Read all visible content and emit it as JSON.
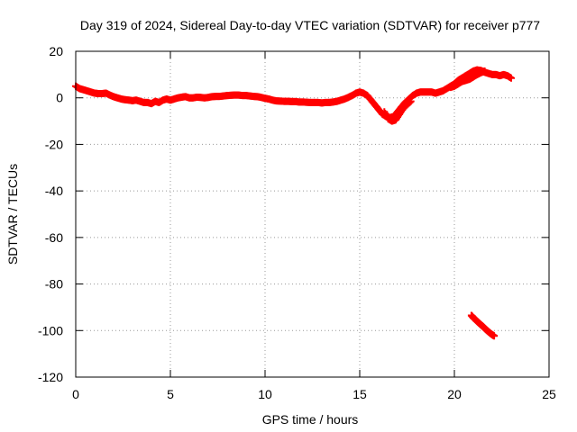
{
  "chart_data": {
    "type": "scatter",
    "title": "Day 319 of 2024, Sidereal Day-to-day VTEC variation (SDTVAR) for receiver p777",
    "xlabel": "GPS time / hours",
    "ylabel": "SDTVAR / TECUs",
    "xlim": [
      0,
      25
    ],
    "ylim": [
      -120,
      20
    ],
    "xticks": [
      0,
      5,
      10,
      15,
      20,
      25
    ],
    "yticks": [
      -120,
      -100,
      -80,
      -60,
      -40,
      -20,
      0,
      20
    ],
    "grid": true,
    "marker": "+",
    "color": "#ff0000",
    "series": [
      {
        "name": "main",
        "points": [
          [
            0.0,
            5.0
          ],
          [
            0.2,
            4.0
          ],
          [
            0.4,
            3.5
          ],
          [
            0.6,
            3.0
          ],
          [
            0.8,
            2.5
          ],
          [
            1.0,
            2.0
          ],
          [
            1.2,
            1.8
          ],
          [
            1.4,
            1.8
          ],
          [
            1.6,
            2.0
          ],
          [
            1.8,
            1.2
          ],
          [
            2.0,
            0.5
          ],
          [
            2.2,
            0.0
          ],
          [
            2.4,
            -0.5
          ],
          [
            2.6,
            -0.8
          ],
          [
            2.8,
            -1.0
          ],
          [
            3.0,
            -1.2
          ],
          [
            3.2,
            -1.0
          ],
          [
            3.4,
            -1.5
          ],
          [
            3.6,
            -2.0
          ],
          [
            3.8,
            -2.0
          ],
          [
            4.0,
            -2.5
          ],
          [
            4.2,
            -1.5
          ],
          [
            4.4,
            -2.0
          ],
          [
            4.6,
            -1.0
          ],
          [
            4.8,
            -0.5
          ],
          [
            5.0,
            -1.0
          ],
          [
            5.2,
            -0.5
          ],
          [
            5.4,
            0.0
          ],
          [
            5.6,
            0.3
          ],
          [
            5.8,
            0.5
          ],
          [
            6.0,
            0.0
          ],
          [
            6.2,
            0.0
          ],
          [
            6.4,
            0.3
          ],
          [
            6.6,
            0.2
          ],
          [
            6.8,
            0.0
          ],
          [
            7.0,
            0.2
          ],
          [
            7.2,
            0.5
          ],
          [
            7.4,
            0.6
          ],
          [
            7.6,
            0.6
          ],
          [
            7.8,
            0.8
          ],
          [
            8.0,
            1.0
          ],
          [
            8.2,
            1.1
          ],
          [
            8.4,
            1.2
          ],
          [
            8.6,
            1.2
          ],
          [
            8.8,
            1.0
          ],
          [
            9.0,
            1.0
          ],
          [
            9.2,
            0.8
          ],
          [
            9.4,
            0.6
          ],
          [
            9.6,
            0.5
          ],
          [
            9.8,
            0.2
          ],
          [
            10.0,
            -0.2
          ],
          [
            10.2,
            -0.5
          ],
          [
            10.4,
            -1.0
          ],
          [
            10.6,
            -1.3
          ],
          [
            10.8,
            -1.4
          ],
          [
            11.0,
            -1.5
          ],
          [
            11.2,
            -1.5
          ],
          [
            11.4,
            -1.6
          ],
          [
            11.6,
            -1.6
          ],
          [
            11.8,
            -1.8
          ],
          [
            12.0,
            -1.8
          ],
          [
            12.2,
            -1.9
          ],
          [
            12.4,
            -2.0
          ],
          [
            12.6,
            -2.0
          ],
          [
            12.8,
            -2.0
          ],
          [
            13.0,
            -2.2
          ],
          [
            13.2,
            -2.0
          ],
          [
            13.4,
            -2.0
          ],
          [
            13.6,
            -1.8
          ],
          [
            13.8,
            -1.5
          ],
          [
            14.0,
            -1.0
          ],
          [
            14.2,
            -0.5
          ],
          [
            14.4,
            0.2
          ],
          [
            14.6,
            1.0
          ],
          [
            14.8,
            2.0
          ],
          [
            15.0,
            2.5
          ],
          [
            15.2,
            2.0
          ],
          [
            15.4,
            1.0
          ],
          [
            15.6,
            -1.0
          ],
          [
            15.8,
            -3.0
          ],
          [
            16.0,
            -5.0
          ],
          [
            16.2,
            -7.0
          ],
          [
            16.4,
            -8.0
          ],
          [
            16.6,
            -8.5
          ],
          [
            16.8,
            -8.0
          ],
          [
            17.0,
            -6.0
          ],
          [
            17.2,
            -4.0
          ],
          [
            17.4,
            -2.0
          ],
          [
            17.6,
            -0.5
          ],
          [
            17.8,
            1.0
          ],
          [
            18.0,
            2.0
          ],
          [
            18.2,
            2.5
          ],
          [
            18.4,
            2.5
          ],
          [
            18.6,
            2.5
          ],
          [
            18.8,
            2.5
          ],
          [
            19.0,
            2.0
          ],
          [
            19.2,
            2.5
          ],
          [
            19.4,
            3.0
          ],
          [
            19.6,
            4.0
          ],
          [
            19.8,
            5.0
          ],
          [
            20.0,
            6.0
          ],
          [
            20.2,
            7.5
          ],
          [
            20.4,
            8.5
          ],
          [
            20.6,
            9.5
          ],
          [
            20.8,
            10.5
          ],
          [
            21.0,
            11.5
          ],
          [
            21.2,
            12.0
          ],
          [
            21.4,
            11.8
          ],
          [
            21.6,
            11.0
          ],
          [
            21.8,
            10.5
          ],
          [
            22.0,
            10.0
          ],
          [
            22.2,
            10.0
          ],
          [
            22.4,
            9.5
          ],
          [
            22.6,
            10.0
          ],
          [
            22.8,
            9.5
          ],
          [
            23.0,
            8.5
          ]
        ]
      },
      {
        "name": "dip-branch",
        "points": [
          [
            16.3,
            -6.0
          ],
          [
            16.5,
            -9.0
          ],
          [
            16.7,
            -10.0
          ],
          [
            16.9,
            -9.5
          ],
          [
            17.1,
            -7.0
          ],
          [
            17.3,
            -4.5
          ],
          [
            17.5,
            -3.0
          ],
          [
            17.7,
            -1.5
          ]
        ]
      },
      {
        "name": "late-branch",
        "points": [
          [
            19.8,
            4.5
          ],
          [
            20.0,
            5.0
          ],
          [
            20.2,
            6.0
          ],
          [
            20.4,
            7.0
          ],
          [
            20.6,
            7.5
          ],
          [
            20.8,
            8.0
          ],
          [
            21.0,
            9.0
          ],
          [
            21.2,
            10.0
          ],
          [
            21.4,
            10.8
          ],
          [
            21.6,
            11.5
          ]
        ]
      },
      {
        "name": "outlier-segment",
        "points": [
          [
            20.9,
            -93.5
          ],
          [
            21.0,
            -94.5
          ],
          [
            21.1,
            -95.2
          ],
          [
            21.2,
            -96.0
          ],
          [
            21.3,
            -96.8
          ],
          [
            21.4,
            -97.5
          ],
          [
            21.5,
            -98.2
          ],
          [
            21.6,
            -99.0
          ],
          [
            21.7,
            -99.8
          ],
          [
            21.8,
            -100.5
          ],
          [
            21.9,
            -101.2
          ],
          [
            22.0,
            -101.8
          ],
          [
            22.1,
            -102.3
          ]
        ]
      }
    ]
  }
}
